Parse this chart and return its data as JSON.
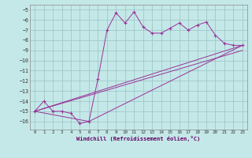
{
  "xlabel": "Windchill (Refroidissement éolien,°C)",
  "bg_color": "#c4e8e8",
  "grid_color": "#a0c8c8",
  "line_color": "#993399",
  "xlim": [
    -0.5,
    23.5
  ],
  "ylim": [
    -16.8,
    -4.5
  ],
  "yticks": [
    -5,
    -6,
    -7,
    -8,
    -9,
    -10,
    -11,
    -12,
    -13,
    -14,
    -15,
    -16
  ],
  "xticks": [
    0,
    1,
    2,
    3,
    4,
    5,
    6,
    7,
    8,
    9,
    10,
    11,
    12,
    13,
    14,
    15,
    16,
    17,
    18,
    19,
    20,
    21,
    22,
    23
  ],
  "line1_x": [
    0,
    1,
    2,
    3,
    4,
    5,
    6,
    7,
    8,
    9,
    10,
    11,
    12,
    13,
    14,
    15,
    16,
    17,
    18,
    19,
    20,
    21,
    22,
    23
  ],
  "line1_y": [
    -15.0,
    -14.0,
    -15.0,
    -15.0,
    -15.2,
    -16.2,
    -16.0,
    -11.8,
    -7.0,
    -5.3,
    -6.3,
    -5.2,
    -6.7,
    -7.3,
    -7.3,
    -6.8,
    -6.3,
    -7.0,
    -6.5,
    -6.2,
    -7.5,
    -8.3,
    -8.5,
    -8.5
  ],
  "line2_x": [
    0,
    23
  ],
  "line2_y": [
    -15.0,
    -8.5
  ],
  "line3_x": [
    0,
    23
  ],
  "line3_y": [
    -15.0,
    -9.0
  ],
  "line4_x": [
    0,
    6,
    23
  ],
  "line4_y": [
    -15.0,
    -16.0,
    -8.5
  ]
}
